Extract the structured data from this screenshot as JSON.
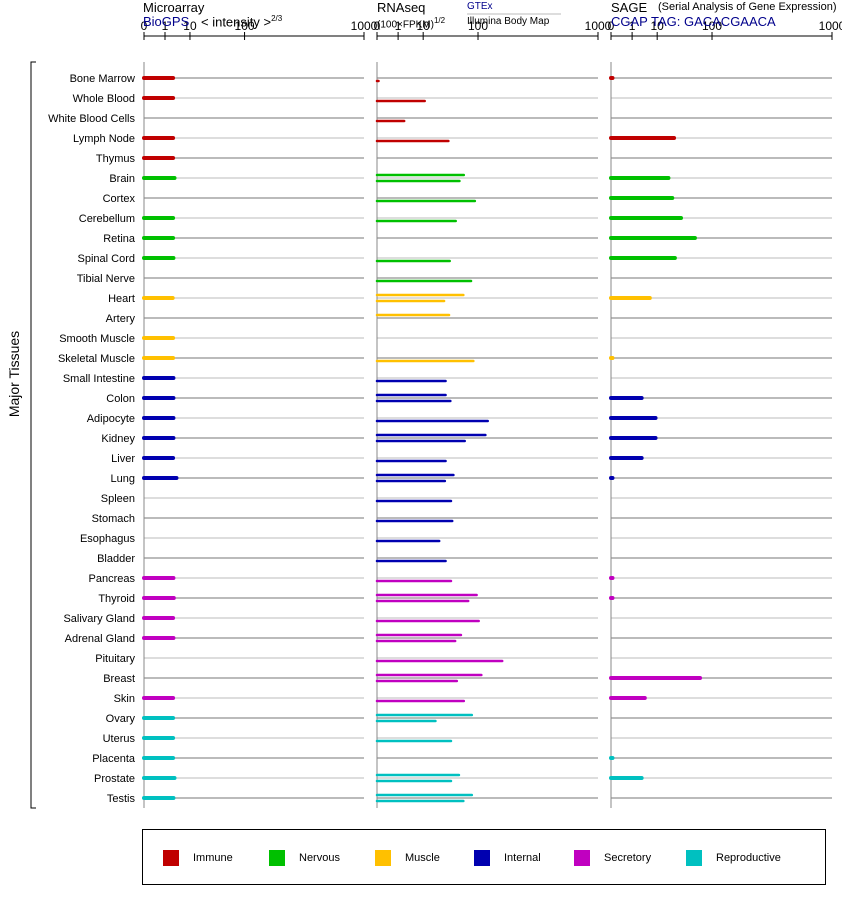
{
  "panels": {
    "microarray": {
      "title": "Microarray",
      "source": "BioGPS",
      "measure": "< intensity >",
      "exponent": "2/3"
    },
    "rnaseq": {
      "title": "RNAseq",
      "measure": "(100×FPKM)",
      "exponent": "1/2",
      "source1": "GTEx",
      "source2": "Illumina Body Map"
    },
    "sage": {
      "title": "SAGE",
      "subtitle": "(Serial Analysis of Gene Expression)",
      "tag": "CGAP TAG: GACACGAACA"
    }
  },
  "y_group_label": "Major Tissues",
  "legend": [
    {
      "label": "Immune",
      "color": "#c00000"
    },
    {
      "label": "Nervous",
      "color": "#00c000"
    },
    {
      "label": "Muscle",
      "color": "#ffc000"
    },
    {
      "label": "Internal",
      "color": "#0000b0"
    },
    {
      "label": "Secretory",
      "color": "#c000c0"
    },
    {
      "label": "Reproductive",
      "color": "#00c0c0"
    }
  ],
  "chart_data": {
    "type": "bar",
    "orientation": "horizontal",
    "x_scale": "power",
    "x_ticks": [
      0,
      1,
      10,
      100,
      1000
    ],
    "xlim": [
      0,
      1000
    ],
    "categories": [
      "Bone Marrow",
      "Whole Blood",
      "White Blood Cells",
      "Lymph Node",
      "Thymus",
      "Brain",
      "Cortex",
      "Cerebellum",
      "Retina",
      "Spinal Cord",
      "Tibial Nerve",
      "Heart",
      "Artery",
      "Smooth Muscle",
      "Skeletal Muscle",
      "Small Intestine",
      "Colon",
      "Adipocyte",
      "Kidney",
      "Liver",
      "Lung",
      "Spleen",
      "Stomach",
      "Esophagus",
      "Bladder",
      "Pancreas",
      "Thyroid",
      "Salivary Gland",
      "Adrenal Gland",
      "Pituitary",
      "Breast",
      "Skin",
      "Ovary",
      "Uterus",
      "Placenta",
      "Prostate",
      "Testis"
    ],
    "category_group": [
      "Immune",
      "Immune",
      "Immune",
      "Immune",
      "Immune",
      "Nervous",
      "Nervous",
      "Nervous",
      "Nervous",
      "Nervous",
      "Nervous",
      "Muscle",
      "Muscle",
      "Muscle",
      "Muscle",
      "Internal",
      "Internal",
      "Internal",
      "Internal",
      "Internal",
      "Internal",
      "Internal",
      "Internal",
      "Internal",
      "Internal",
      "Secretory",
      "Secretory",
      "Secretory",
      "Secretory",
      "Secretory",
      "Secretory",
      "Secretory",
      "Reproductive",
      "Reproductive",
      "Reproductive",
      "Reproductive",
      "Reproductive"
    ],
    "series": [
      {
        "name": "BioGPS",
        "values": [
          2.6,
          2.6,
          null,
          2.6,
          2.6,
          3.0,
          null,
          2.6,
          2.6,
          2.7,
          null,
          2.5,
          null,
          2.6,
          2.6,
          2.7,
          2.7,
          2.7,
          2.7,
          2.6,
          3.6,
          null,
          null,
          null,
          null,
          2.7,
          2.8,
          2.6,
          2.7,
          null,
          null,
          2.6,
          2.6,
          2.6,
          2.6,
          3.0,
          2.7
        ]
      },
      {
        "name": "GTEx",
        "values": [
          null,
          null,
          null,
          null,
          null,
          64,
          null,
          null,
          null,
          null,
          null,
          63,
          37,
          null,
          null,
          null,
          32,
          null,
          123,
          null,
          44,
          null,
          null,
          null,
          null,
          null,
          96,
          null,
          58,
          null,
          110,
          null,
          83,
          null,
          null,
          54,
          83
        ]
      },
      {
        "name": "Illumina Body Map",
        "values": [
          0,
          11,
          2.1,
          36,
          null,
          55,
          91,
          48,
          null,
          38,
          81,
          30,
          null,
          null,
          87,
          32,
          39,
          131,
          66,
          32,
          31,
          40,
          42,
          24,
          32,
          40,
          74,
          102,
          47,
          188,
          50,
          64,
          20,
          40,
          null,
          40,
          63
        ]
      },
      {
        "name": "SAGE",
        "values": [
          0,
          null,
          null,
          25,
          null,
          19,
          23,
          34,
          58,
          26,
          null,
          6,
          null,
          null,
          0,
          null,
          3,
          9,
          9,
          3,
          0,
          null,
          null,
          null,
          null,
          0,
          0,
          null,
          null,
          null,
          69,
          4,
          null,
          null,
          0,
          3,
          null
        ]
      }
    ]
  }
}
